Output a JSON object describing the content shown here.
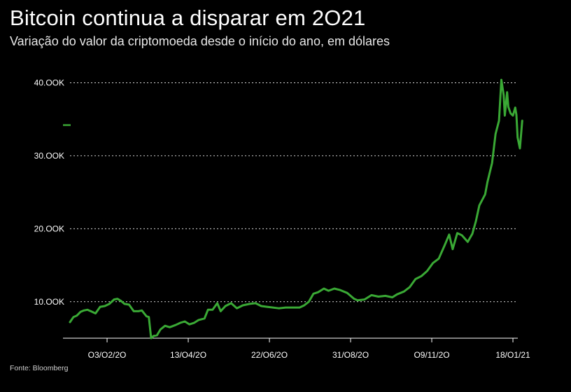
{
  "header": {
    "title": "Bitcoin continua a disparar em 2O21",
    "subtitle": "Variação do valor da criptomoeda desde o início do ano, em dólares"
  },
  "footer": {
    "source": "Fonte: Bloomberg"
  },
  "chart_data": {
    "type": "line",
    "title": "Bitcoin continua a disparar em 2O21",
    "subtitle": "Variação do valor da criptomoeda desde o início do ano, em dólares",
    "xlabel": "",
    "ylabel": "",
    "ylim": [
      5000,
      41000
    ],
    "xlim": [
      "2020-01-02",
      "2021-01-21"
    ],
    "grid": "horizontal dotted",
    "line_color": "#3aa935",
    "yticks": [
      {
        "value": 10000,
        "label": "10.OOK"
      },
      {
        "value": 20000,
        "label": "20.OOK"
      },
      {
        "value": 30000,
        "label": "30.OOK"
      },
      {
        "value": 40000,
        "label": "40.OOK"
      }
    ],
    "xticks": [
      {
        "value": "2020-02-03",
        "label": "O3/O2/2O"
      },
      {
        "value": "2020-04-13",
        "label": "13/O4/2O"
      },
      {
        "value": "2020-06-22",
        "label": "22/O6/2O"
      },
      {
        "value": "2020-08-31",
        "label": "31/O8/2O"
      },
      {
        "value": "2020-11-09",
        "label": "O9/11/2O"
      },
      {
        "value": "2021-01-18",
        "label": "18/O1/21"
      }
    ],
    "legend_marker": {
      "value": 34200,
      "color": "#3aa935"
    },
    "series": [
      {
        "x": [
          "2020-01-02",
          "2020-01-05",
          "2020-01-08",
          "2020-01-11",
          "2020-01-14",
          "2020-01-17",
          "2020-01-20",
          "2020-01-24",
          "2020-01-28",
          "2020-02-01",
          "2020-02-05",
          "2020-02-09",
          "2020-02-12",
          "2020-02-15",
          "2020-02-18",
          "2020-02-22",
          "2020-02-26",
          "2020-03-01",
          "2020-03-04",
          "2020-03-08",
          "2020-03-10",
          "2020-03-12",
          "2020-03-14",
          "2020-03-17",
          "2020-03-20",
          "2020-03-24",
          "2020-03-28",
          "2020-04-02",
          "2020-04-06",
          "2020-04-10",
          "2020-04-14",
          "2020-04-18",
          "2020-04-22",
          "2020-04-27",
          "2020-04-30",
          "2020-05-04",
          "2020-05-08",
          "2020-05-11",
          "2020-05-15",
          "2020-05-20",
          "2020-05-25",
          "2020-05-30",
          "2020-06-05",
          "2020-06-10",
          "2020-06-15",
          "2020-06-20",
          "2020-06-25",
          "2020-06-30",
          "2020-07-06",
          "2020-07-12",
          "2020-07-18",
          "2020-07-22",
          "2020-07-26",
          "2020-07-30",
          "2020-08-03",
          "2020-08-08",
          "2020-08-12",
          "2020-08-17",
          "2020-08-22",
          "2020-08-28",
          "2020-09-03",
          "2020-09-06",
          "2020-09-12",
          "2020-09-18",
          "2020-09-24",
          "2020-09-30",
          "2020-10-06",
          "2020-10-10",
          "2020-10-16",
          "2020-10-21",
          "2020-10-26",
          "2020-10-31",
          "2020-11-05",
          "2020-11-10",
          "2020-11-15",
          "2020-11-20",
          "2020-11-24",
          "2020-11-27",
          "2020-12-01",
          "2020-12-05",
          "2020-12-10",
          "2020-12-14",
          "2020-12-17",
          "2020-12-20",
          "2020-12-25",
          "2020-12-27",
          "2020-12-31",
          "2021-01-03",
          "2021-01-06",
          "2021-01-08",
          "2021-01-10",
          "2021-01-11",
          "2021-01-13",
          "2021-01-14",
          "2021-01-16",
          "2021-01-18",
          "2021-01-20",
          "2021-01-21",
          "2021-01-22",
          "2021-01-24",
          "2021-01-26"
        ],
        "values": [
          7200,
          7900,
          8100,
          8600,
          8800,
          8900,
          8700,
          8400,
          9300,
          9400,
          9700,
          10300,
          10400,
          10100,
          9700,
          9600,
          8700,
          8700,
          8800,
          8000,
          7900,
          5000,
          5300,
          5400,
          6200,
          6700,
          6500,
          6800,
          7100,
          7300,
          6900,
          7100,
          7500,
          7700,
          8900,
          8900,
          9800,
          8700,
          9400,
          9800,
          9100,
          9500,
          9700,
          9800,
          9400,
          9300,
          9200,
          9100,
          9200,
          9200,
          9200,
          9500,
          10000,
          11100,
          11300,
          11800,
          11500,
          11800,
          11600,
          11200,
          10400,
          10200,
          10300,
          10900,
          10700,
          10800,
          10600,
          11000,
          11400,
          12000,
          13100,
          13500,
          14200,
          15300,
          15900,
          17700,
          19200,
          17200,
          19400,
          19100,
          18200,
          19300,
          21000,
          23200,
          24700,
          26400,
          29000,
          33000,
          34800,
          40400,
          38300,
          35500,
          38700,
          36700,
          35800,
          35500,
          36600,
          35600,
          32500,
          31000,
          34800
        ]
      }
    ]
  }
}
